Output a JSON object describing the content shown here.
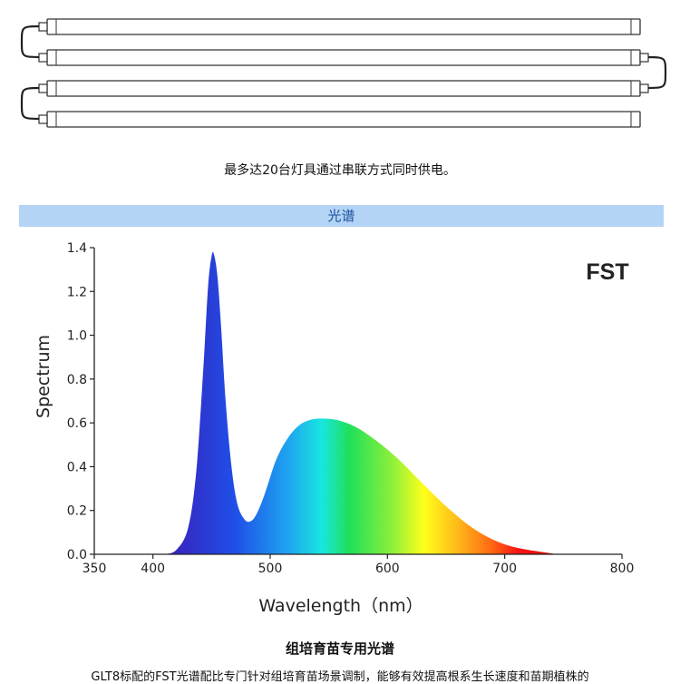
{
  "caption_top": "最多达20台灯具通过串联方式同时供电。",
  "section_label": "光谱",
  "bottom_title": "组培育苗专用光谱",
  "bottom_description": "GLT8标配的FST光谱配比专门针对组培育苗场景调制，能够有效提高根系生长速度和苗期植株的",
  "chart_data": {
    "type": "area",
    "title": "FST",
    "xlabel": "Wavelength（nm）",
    "ylabel": "Spectrum",
    "xlim": [
      350,
      800
    ],
    "ylim": [
      0,
      1.4
    ],
    "xticks": [
      350,
      400,
      500,
      600,
      700,
      800
    ],
    "yticks": [
      0.0,
      0.2,
      0.4,
      0.6,
      0.8,
      1.0,
      1.2,
      1.4
    ],
    "ytick_labels": [
      "0.0",
      "0.2",
      "0.4",
      "0.6",
      "0.8",
      "1.0",
      "1.2",
      "1.4"
    ],
    "grid": false,
    "fill": "wavelength-color gradient",
    "series": [
      {
        "x": [
          410,
          420,
          430,
          437,
          443,
          447,
          450,
          452,
          455,
          458,
          462,
          467,
          472,
          478,
          483,
          488,
          495,
          505,
          515,
          525,
          535,
          545,
          555,
          565,
          575,
          585,
          595,
          605,
          615,
          625,
          640,
          655,
          670,
          685,
          700,
          715,
          730,
          745
        ],
        "y": [
          0.0,
          0.02,
          0.12,
          0.38,
          0.85,
          1.22,
          1.36,
          1.37,
          1.27,
          1.05,
          0.7,
          0.4,
          0.23,
          0.16,
          0.15,
          0.18,
          0.27,
          0.43,
          0.53,
          0.59,
          0.615,
          0.62,
          0.615,
          0.6,
          0.575,
          0.54,
          0.5,
          0.455,
          0.405,
          0.35,
          0.27,
          0.195,
          0.13,
          0.08,
          0.045,
          0.025,
          0.012,
          0.0
        ]
      }
    ]
  }
}
